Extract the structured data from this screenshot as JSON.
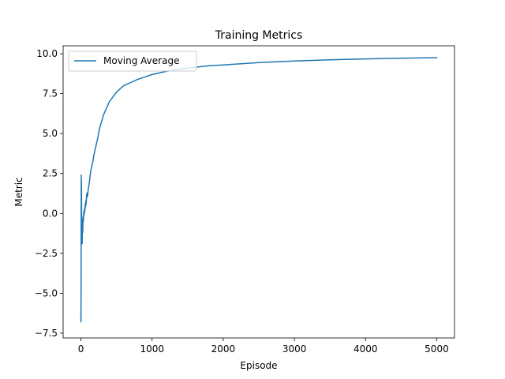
{
  "chart_data": {
    "type": "line",
    "title": "Training Metrics",
    "xlabel": "Episode",
    "ylabel": "Metric",
    "xlim": [
      -250,
      5250
    ],
    "ylim": [
      -7.8,
      10.5
    ],
    "xticks": [
      0,
      1000,
      2000,
      3000,
      4000,
      5000
    ],
    "yticks": [
      -7.5,
      -5.0,
      -2.5,
      0.0,
      2.5,
      5.0,
      7.5,
      10.0
    ],
    "grid": false,
    "legend_position": "upper-left",
    "colors": {
      "series": "#1f77b4",
      "axes": "#000000"
    },
    "series": [
      {
        "name": "Moving Average",
        "x": [
          0,
          1,
          2,
          3,
          4,
          5,
          6,
          8,
          10,
          12,
          15,
          18,
          22,
          26,
          30,
          35,
          40,
          45,
          50,
          55,
          60,
          65,
          70,
          75,
          80,
          85,
          90,
          95,
          100,
          110,
          120,
          130,
          140,
          150,
          160,
          170,
          180,
          190,
          200,
          220,
          240,
          260,
          280,
          300,
          320,
          340,
          360,
          380,
          400,
          450,
          500,
          550,
          600,
          650,
          700,
          800,
          900,
          1000,
          1200,
          1400,
          1600,
          1800,
          2000,
          2500,
          3000,
          3500,
          4000,
          4500,
          5000
        ],
        "y": [
          -6.2,
          -6.8,
          -5.0,
          -2.5,
          0.5,
          2.4,
          1.0,
          2.0,
          -1.0,
          -1.6,
          -0.8,
          -1.9,
          -0.4,
          -1.2,
          -0.2,
          -0.5,
          0.1,
          -0.1,
          0.3,
          0.1,
          0.6,
          0.4,
          0.8,
          0.6,
          1.2,
          1.0,
          1.3,
          1.1,
          1.4,
          1.7,
          2.0,
          2.4,
          2.7,
          2.9,
          3.1,
          3.3,
          3.6,
          3.8,
          4.0,
          4.4,
          4.8,
          5.3,
          5.6,
          5.9,
          6.2,
          6.4,
          6.6,
          6.8,
          7.0,
          7.3,
          7.6,
          7.8,
          8.0,
          8.1,
          8.2,
          8.4,
          8.55,
          8.7,
          8.9,
          9.05,
          9.15,
          9.25,
          9.3,
          9.45,
          9.55,
          9.62,
          9.68,
          9.72,
          9.76
        ]
      }
    ]
  }
}
